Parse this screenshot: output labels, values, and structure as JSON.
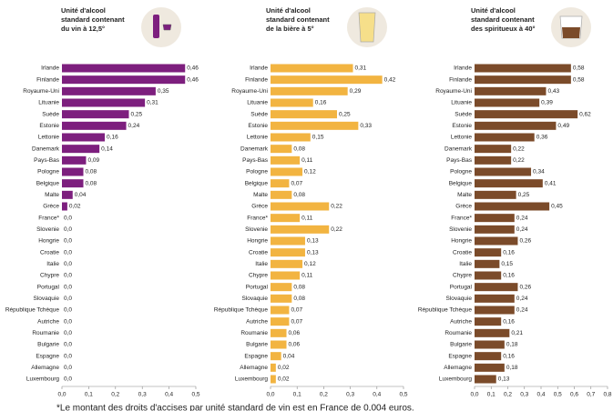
{
  "chart_data": [
    {
      "type": "bar",
      "orientation": "horizontal",
      "title": [
        "Unité d'alcool",
        "standard contenant",
        "du vin à 12,5°"
      ],
      "color": "#7d1f7e",
      "categories": [
        "Irlande",
        "Finlande",
        "Royaume-Uni",
        "Lituanie",
        "Suède",
        "Estonie",
        "Lettonie",
        "Danemark",
        "Pays-Bas",
        "Pologne",
        "Belgique",
        "Malte",
        "Grèce",
        "France*",
        "Slovenie",
        "Hongrie",
        "Croatie",
        "Italie",
        "Chypre",
        "Portugal",
        "Slovaquie",
        "République Tchèque",
        "Autriche",
        "Roumanie",
        "Bulgarie",
        "Espagne",
        "Allemagne",
        "Luxembourg"
      ],
      "values": [
        0.46,
        0.46,
        0.35,
        0.31,
        0.25,
        0.24,
        0.16,
        0.14,
        0.09,
        0.08,
        0.08,
        0.04,
        0.02,
        0,
        0,
        0,
        0,
        0,
        0,
        0,
        0,
        0,
        0,
        0,
        0,
        0,
        0,
        0
      ],
      "value_labels": [
        "0,46",
        "0,46",
        "0,35",
        "0,31",
        "0,25",
        "0,24",
        "0,16",
        "0,14",
        "0,09",
        "0,08",
        "0,08",
        "0,04",
        "0,02",
        "0,0",
        "0,0",
        "0,0",
        "0,0",
        "0,0",
        "0,0",
        "0,0",
        "0,0",
        "0,0",
        "0,0",
        "0,0",
        "0,0",
        "0,0",
        "0,0",
        "0,0"
      ],
      "xlim": [
        0,
        0.5
      ],
      "xticks": [
        {
          "value": 0,
          "label": "0,0"
        },
        {
          "value": 0.1,
          "label": "0,1"
        },
        {
          "value": 0.2,
          "label": "0,2"
        },
        {
          "value": 0.3,
          "label": "0,3"
        },
        {
          "value": 0.4,
          "label": "0,4"
        },
        {
          "value": 0.5,
          "label": "0,5"
        }
      ]
    },
    {
      "type": "bar",
      "orientation": "horizontal",
      "title": [
        "Unité d'alcool",
        "standard contenant",
        "de la bière à 5°"
      ],
      "color": "#f2b441",
      "categories": [
        "Irlande",
        "Finlande",
        "Royaume-Uni",
        "Lituanie",
        "Suède",
        "Estonie",
        "Lettonie",
        "Danemark",
        "Pays-Bas",
        "Pologne",
        "Belgique",
        "Malte",
        "Grèce",
        "France*",
        "Slovenie",
        "Hongrie",
        "Croatie",
        "Italie",
        "Chypre",
        "Portugal",
        "Slovaquie",
        "République Tchèque",
        "Autriche",
        "Roumanie",
        "Bulgarie",
        "Espagne",
        "Allemagne",
        "Luxembourg"
      ],
      "values": [
        0.31,
        0.42,
        0.29,
        0.16,
        0.25,
        0.33,
        0.15,
        0.08,
        0.11,
        0.12,
        0.07,
        0.08,
        0.22,
        0.11,
        0.22,
        0.13,
        0.13,
        0.12,
        0.11,
        0.08,
        0.08,
        0.07,
        0.07,
        0.06,
        0.06,
        0.04,
        0.02,
        0.02
      ],
      "value_labels": [
        "0,31",
        "0,42",
        "0,29",
        "0,16",
        "0,25",
        "0,33",
        "0,15",
        "0,08",
        "0,11",
        "0,12",
        "0,07",
        "0,08",
        "0,22",
        "0,11",
        "0,22",
        "0,13",
        "0,13",
        "0,12",
        "0,11",
        "0,08",
        "0,08",
        "0,07",
        "0,07",
        "0,06",
        "0,06",
        "0,04",
        "0,02",
        "0,02"
      ],
      "xlim": [
        0,
        0.5
      ],
      "xticks": [
        {
          "value": 0,
          "label": "0,0"
        },
        {
          "value": 0.1,
          "label": "0,1"
        },
        {
          "value": 0.2,
          "label": "0,2"
        },
        {
          "value": 0.3,
          "label": "0,3"
        },
        {
          "value": 0.4,
          "label": "0,4"
        },
        {
          "value": 0.5,
          "label": "0,5"
        }
      ]
    },
    {
      "type": "bar",
      "orientation": "horizontal",
      "title": [
        "Unité d'alcool",
        "standard contenant",
        "des spiritueux à 40°"
      ],
      "color": "#7b4b2a",
      "categories": [
        "Irlande",
        "Finlande",
        "Royaume-Uni",
        "Lituanie",
        "Suède",
        "Estonie",
        "Lettonie",
        "Danemark",
        "Pays-Bas",
        "Pologne",
        "Belgique",
        "Malte",
        "Grèce",
        "France*",
        "Slovenie",
        "Hongrie",
        "Croatie",
        "Italie",
        "Chypre",
        "Portugal",
        "Slovaquie",
        "République Tchèque",
        "Autriche",
        "Roumanie",
        "Bulgarie",
        "Espagne",
        "Allemagne",
        "Luxembourg"
      ],
      "values": [
        0.58,
        0.58,
        0.43,
        0.39,
        0.62,
        0.49,
        0.36,
        0.22,
        0.22,
        0.34,
        0.41,
        0.25,
        0.45,
        0.24,
        0.24,
        0.26,
        0.16,
        0.15,
        0.16,
        0.26,
        0.24,
        0.24,
        0.16,
        0.21,
        0.18,
        0.16,
        0.18,
        0.13
      ],
      "value_labels": [
        "0,58",
        "0,58",
        "0,43",
        "0,39",
        "0,62",
        "0,49",
        "0,36",
        "0,22",
        "0,22",
        "0,34",
        "0,41",
        "0,25",
        "0,45",
        "0,24",
        "0,24",
        "0,26",
        "0,16",
        "0,15",
        "0,16",
        "0,26",
        "0,24",
        "0,24",
        "0,16",
        "0,21",
        "0,18",
        "0,16",
        "0,18",
        "0,13"
      ],
      "xlim": [
        0,
        0.8
      ],
      "xticks": [
        {
          "value": 0,
          "label": "0,0"
        },
        {
          "value": 0.1,
          "label": "0,1"
        },
        {
          "value": 0.2,
          "label": "0,2"
        },
        {
          "value": 0.3,
          "label": "0,3"
        },
        {
          "value": 0.4,
          "label": "0,4"
        },
        {
          "value": 0.5,
          "label": "0,5"
        },
        {
          "value": 0.6,
          "label": "0,6"
        },
        {
          "value": 0.7,
          "label": "0,7"
        },
        {
          "value": 0.8,
          "label": "0,8"
        }
      ]
    }
  ],
  "footnote": "*Le montant des droits d'accises par unité standard de vin est en France de 0,004 euros."
}
